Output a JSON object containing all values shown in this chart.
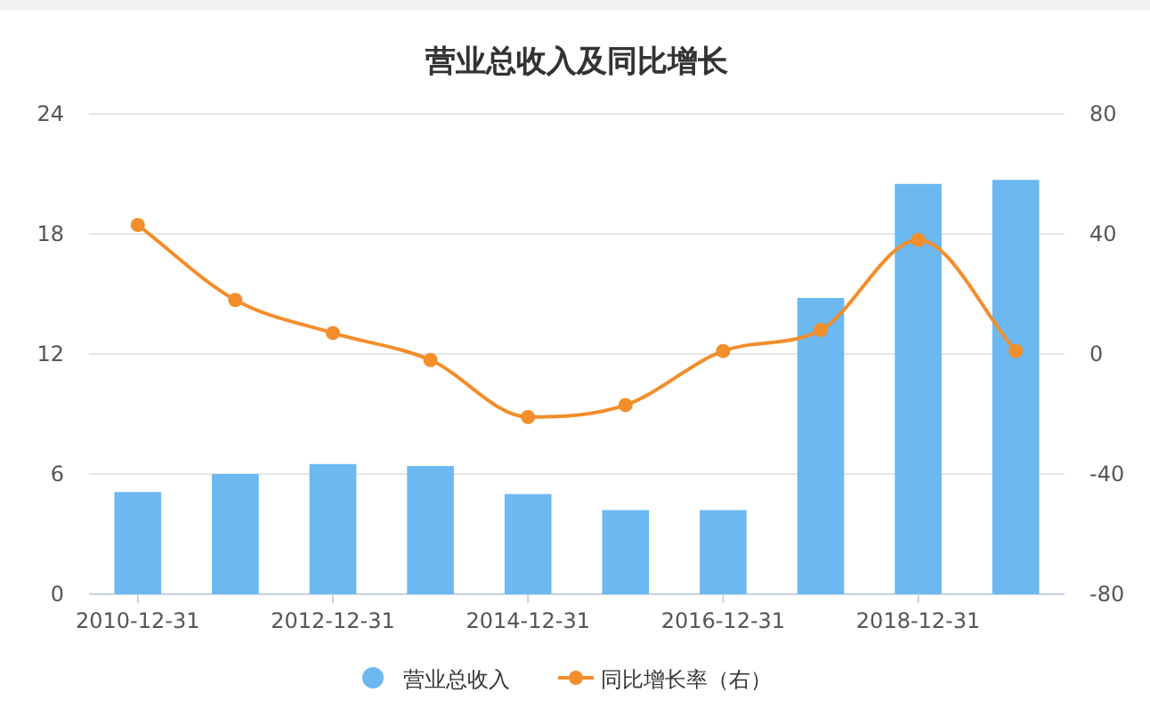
{
  "chart_data": {
    "type": "bar",
    "title": "营业总收入及同比增长",
    "categories": [
      "2010-12-31",
      null,
      "2012-12-31",
      null,
      "2014-12-31",
      null,
      "2016-12-31",
      null,
      "2018-12-31",
      null
    ],
    "series": [
      {
        "name": "营业总收入",
        "color": "#6cb8f0",
        "values": [
          5.1,
          6.0,
          6.5,
          6.4,
          5.0,
          4.2,
          4.2,
          14.8,
          20.5,
          20.7
        ]
      },
      {
        "name": "同比增长率（右）",
        "type": "line",
        "axis": "y2",
        "color": "#f28e2b",
        "marker": "circle",
        "line_style": "solid",
        "values": [
          43,
          18,
          7,
          -2,
          -21,
          -17,
          1,
          8,
          38,
          1
        ]
      }
    ],
    "ylim": [
      0,
      24
    ],
    "yticks": [
      0,
      6,
      12,
      18,
      24
    ],
    "y2lim": [
      -80,
      80
    ],
    "y2ticks": [
      -80,
      -40,
      0,
      40,
      80
    ],
    "grid": "y",
    "legend": "bottom"
  }
}
